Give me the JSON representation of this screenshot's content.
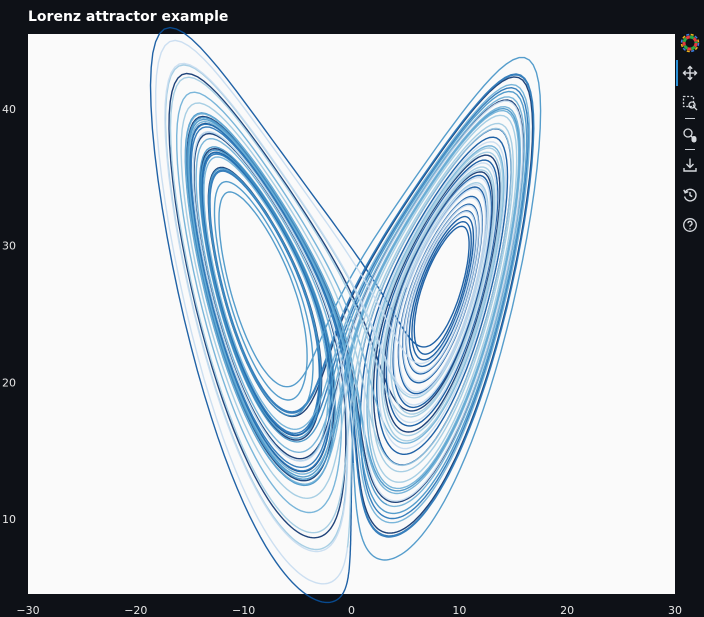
{
  "header": {
    "title": "Lorenz attractor example"
  },
  "toolbar": {
    "tools": [
      {
        "name": "bokeh-logo-icon",
        "interactable": true
      },
      {
        "name": "pan-icon",
        "interactable": true,
        "active": true
      },
      {
        "name": "box-zoom-icon",
        "interactable": true
      },
      {
        "name": "wheel-zoom-icon",
        "interactable": true
      },
      {
        "name": "save-icon",
        "interactable": true
      },
      {
        "name": "reset-icon",
        "interactable": true
      },
      {
        "name": "help-icon",
        "interactable": true
      }
    ]
  },
  "chart_data": {
    "type": "line",
    "title": "Lorenz attractor example",
    "xlabel": "",
    "ylabel": "",
    "xlim": [
      -30,
      30
    ],
    "ylim": [
      4.5,
      45.5
    ],
    "x_ticks": [
      -30,
      -20,
      -10,
      0,
      10,
      20,
      30
    ],
    "y_ticks": [
      10,
      20,
      30,
      40
    ],
    "x_tick_labels": [
      "−30",
      "−20",
      "−10",
      "0",
      "10",
      "20",
      "30"
    ],
    "y_tick_labels": [
      "10",
      "20",
      "30",
      "40"
    ],
    "grid": false,
    "legend": "none",
    "series_generation": {
      "system": "lorenz",
      "sigma": 10,
      "rho": 28,
      "beta": 2.6667,
      "initial_state": [
        -10,
        -7,
        35
      ],
      "dt": 0.006,
      "steps": 10000,
      "projection": [
        "x",
        "z"
      ],
      "segments": 7
    },
    "colors": [
      "#08306b",
      "#08519c",
      "#2171b5",
      "#4292c6",
      "#6baed6",
      "#9ecae1",
      "#c6dbef"
    ],
    "plot_background": "#fafafa",
    "page_background": "#0e1117"
  }
}
